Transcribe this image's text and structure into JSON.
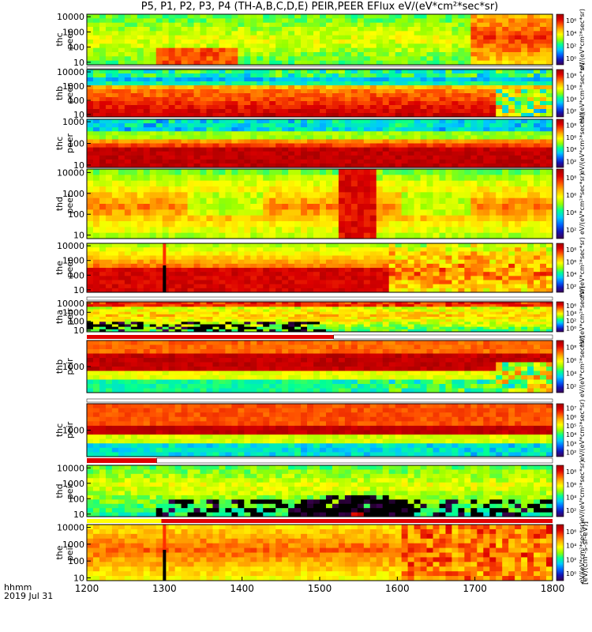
{
  "title": "P5, P1, P2, P3, P4 (TH-A,B,C,D,E) PEIR,PEER EFlux eV/(eV*cm²*sec*sr)",
  "chart_data": {
    "type": "heatmap",
    "title": "P5, P1, P2, P3, P4 (TH-A,B,C,D,E) PEIR,PEER EFlux eV/(eV*cm²*sec*sr)",
    "xaxis": {
      "ticks": [
        "1200",
        "1300",
        "1400",
        "1500",
        "1600",
        "1700",
        "1800"
      ],
      "range": [
        1200,
        1800
      ],
      "label_line1": "hhmm",
      "label_line2": "2019 Jul 31"
    },
    "colorbar_label": "[eV/(cm²-s-sr-eV)]",
    "panels": [
      {
        "name": "thc_peer",
        "line1": "thc",
        "line2": "peer",
        "yticks": [
          "10",
          "100",
          "1000",
          "10000"
        ],
        "cbticks": [
          "10⁶",
          "10⁴",
          "10²",
          "10⁰"
        ],
        "unit": "eV/(eV*cm²*sec*sr)"
      },
      {
        "name": "thb_peer",
        "line1": "thb",
        "line2": "peer",
        "yticks": [
          "10",
          "100",
          "1000",
          "10000"
        ],
        "cbticks": [
          "10⁸",
          "10⁶",
          "10⁴",
          "10²"
        ],
        "unit": "eV/(eV*cm²*sec*sr)"
      },
      {
        "name": "thc_peer_2",
        "line1": "thc",
        "line2": "peer",
        "yticks": [
          "10",
          "100",
          "1000"
        ],
        "cbticks": [
          "10⁸",
          "10⁶",
          "10⁴",
          "10²"
        ],
        "unit": "eV/(eV*cm²*sec*sr)"
      },
      {
        "name": "thd_peer",
        "line1": "thd",
        "line2": "peer",
        "yticks": [
          "10",
          "100",
          "1000",
          "10000"
        ],
        "cbticks": [
          "10⁸",
          "10⁶",
          "10⁴",
          "10²"
        ],
        "unit": "eV/(eV*cm²*sec*sr)"
      },
      {
        "name": "the_peer",
        "line1": "the",
        "line2": "peer",
        "yticks": [
          "10",
          "100",
          "1000",
          "10000"
        ],
        "cbticks": [
          "10⁸",
          "10⁶",
          "10⁴",
          "10²"
        ],
        "unit": "eV/(eV*cm²*sec*sr)"
      },
      {
        "name": "tha_peir",
        "line1": "tha",
        "line2": "peir",
        "yticks": [
          "10",
          "100",
          "1000",
          "10000"
        ],
        "cbticks": [
          "10⁶",
          "10⁴",
          "10²",
          "10⁰"
        ],
        "unit": "eV/(eV*cm²*sec*sr)"
      },
      {
        "name": "thb_peir",
        "line1": "thb",
        "line2": "peir",
        "yticks": [
          "1000"
        ],
        "cbticks": [
          "10⁸",
          "10⁶",
          "10⁴",
          "10²"
        ],
        "unit": "eV/(eV*cm²*sec*sr)"
      },
      {
        "name": "thc_peir",
        "line1": "thc",
        "line2": "peir",
        "yticks": [
          "1000"
        ],
        "cbticks": [
          "10⁷",
          "10⁶",
          "10⁵",
          "10⁴",
          "10³",
          "10²"
        ],
        "unit": "eV/(eV*cm²*sec*sr)"
      },
      {
        "name": "thd_peir",
        "line1": "thd",
        "line2": "peir",
        "yticks": [
          "10",
          "100",
          "1000",
          "10000"
        ],
        "cbticks": [
          "10⁸",
          "10⁶",
          "10⁴",
          "10²"
        ],
        "unit": "eV/(eV*cm²*sec*sr)"
      },
      {
        "name": "the_peir",
        "line1": "the",
        "line2": "peir",
        "yticks": [
          "10",
          "100",
          "1000",
          "10000"
        ],
        "cbticks": [
          "10⁶",
          "10⁴",
          "10²",
          "10⁰"
        ],
        "unit": "eV/(eV*cm²*sec*sr)"
      }
    ],
    "colormap": [
      "#000000",
      "#3c0050",
      "#1414b4",
      "#0064ff",
      "#00c8ff",
      "#00ff96",
      "#96ff00",
      "#ffff00",
      "#ffb400",
      "#ff5000",
      "#dc0000",
      "#a00000"
    ],
    "bar_colors": {
      "data": "#e00000",
      "nodata": "#ffff00"
    }
  }
}
